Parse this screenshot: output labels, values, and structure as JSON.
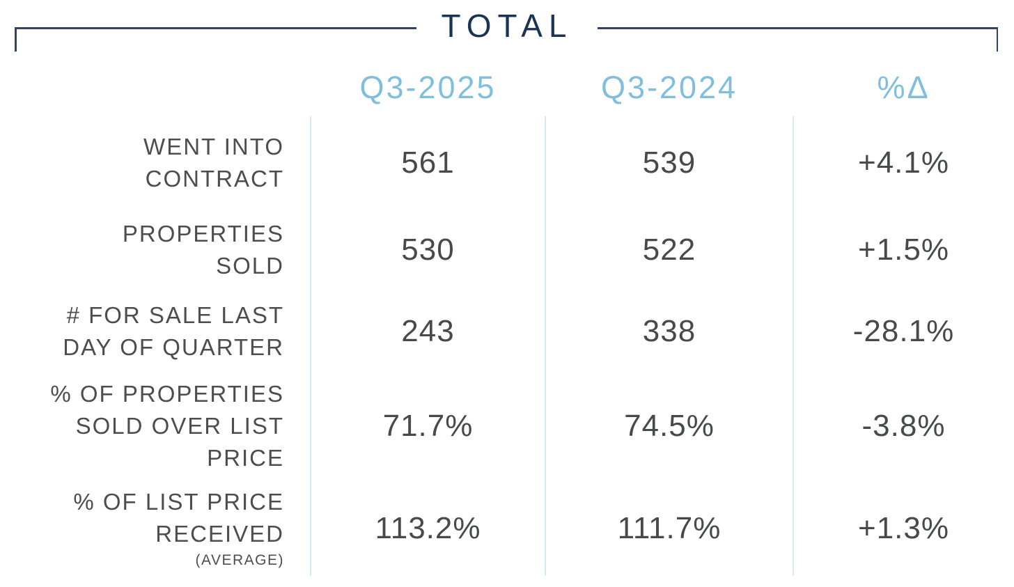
{
  "title": "TOTAL",
  "colors": {
    "bracket_navy": "#2e4563",
    "title_navy": "#1a3457",
    "header_blue": "#7fbedd",
    "separator_blue": "#d6eaf3",
    "label_gray": "#4d4d4f",
    "value_gray": "#48494b"
  },
  "table": {
    "columns": [
      "Q3-2025",
      "Q3-2024",
      "%Δ"
    ],
    "rows": [
      {
        "label_lines": [
          "WENT INTO",
          "CONTRACT"
        ],
        "q3_2025": "561",
        "q3_2024": "539",
        "delta": "+4.1%"
      },
      {
        "label_lines": [
          "PROPERTIES",
          "SOLD"
        ],
        "q3_2025": "530",
        "q3_2024": "522",
        "delta": "+1.5%"
      },
      {
        "label_lines": [
          "# FOR SALE LAST",
          "DAY OF QUARTER"
        ],
        "q3_2025": "243",
        "q3_2024": "338",
        "delta": "-28.1%"
      },
      {
        "label_lines": [
          "% OF PROPERTIES",
          "SOLD OVER LIST",
          "PRICE"
        ],
        "q3_2025": "71.7%",
        "q3_2024": "74.5%",
        "delta": "-3.8%"
      },
      {
        "label_lines": [
          "% OF LIST PRICE",
          "RECEIVED"
        ],
        "label_note": "(AVERAGE)",
        "q3_2025": "113.2%",
        "q3_2024": "111.7%",
        "delta": "+1.3%"
      }
    ]
  },
  "chart_data": {
    "type": "table",
    "title": "TOTAL",
    "columns": [
      "Q3-2025",
      "Q3-2024",
      "%Δ"
    ],
    "metrics": [
      {
        "name": "Went into contract",
        "q3_2025": 561,
        "q3_2024": 539,
        "pct_change": 4.1
      },
      {
        "name": "Properties sold",
        "q3_2025": 530,
        "q3_2024": 522,
        "pct_change": 1.5
      },
      {
        "name": "# for sale last day of quarter",
        "q3_2025": 243,
        "q3_2024": 338,
        "pct_change": -28.1
      },
      {
        "name": "% of properties sold over list price",
        "q3_2025": 71.7,
        "q3_2024": 74.5,
        "pct_change": -3.8
      },
      {
        "name": "% of list price received (average)",
        "q3_2025": 113.2,
        "q3_2024": 111.7,
        "pct_change": 1.3
      }
    ]
  }
}
